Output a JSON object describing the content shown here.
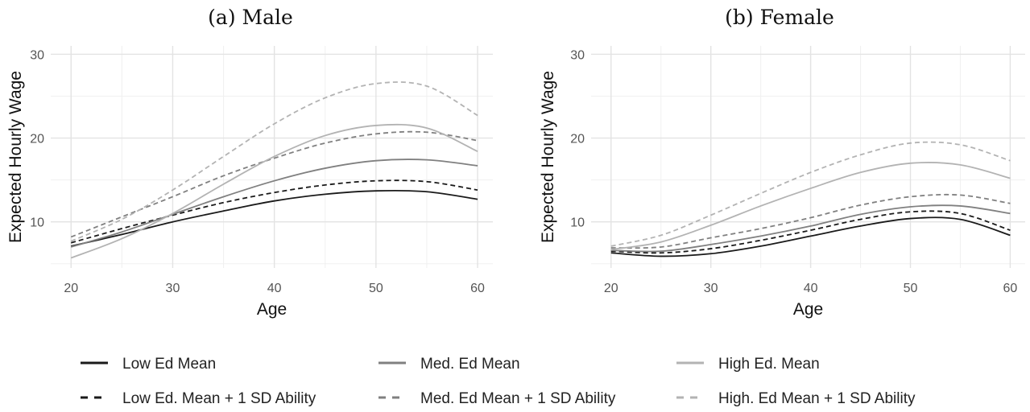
{
  "chart_data": [
    {
      "type": "line",
      "title": "(a) Male",
      "xlabel": "Age",
      "ylabel": "Expected Hourly Wage",
      "xlim": [
        18,
        61.5
      ],
      "ylim": [
        4.5,
        31
      ],
      "xticks": [
        20,
        30,
        40,
        50,
        60
      ],
      "yticks": [
        10,
        20,
        30
      ],
      "grid": true,
      "x": [
        20,
        25,
        30,
        35,
        40,
        45,
        50,
        55,
        60
      ],
      "series": [
        {
          "name": "Low Ed Mean",
          "values": [
            7.1,
            8.5,
            10.0,
            11.3,
            12.5,
            13.3,
            13.7,
            13.6,
            12.7
          ]
        },
        {
          "name": "Low Ed. Mean + 1 SD Ability",
          "values": [
            7.5,
            9.2,
            10.8,
            12.3,
            13.5,
            14.4,
            14.9,
            14.8,
            13.8
          ]
        },
        {
          "name": "Med. Ed Mean",
          "values": [
            7.0,
            8.8,
            10.9,
            13.0,
            14.9,
            16.4,
            17.3,
            17.4,
            16.7
          ]
        },
        {
          "name": "Med. Ed Mean + 1 SD Ability",
          "values": [
            8.2,
            10.6,
            13.0,
            15.5,
            17.6,
            19.4,
            20.5,
            20.7,
            19.7
          ]
        },
        {
          "name": "High Ed. Mean",
          "values": [
            5.7,
            8.0,
            11.0,
            14.5,
            17.8,
            20.3,
            21.5,
            21.2,
            18.4
          ]
        },
        {
          "name": "High. Ed Mean + 1 SD Ability",
          "values": [
            7.7,
            10.3,
            13.8,
            17.8,
            21.7,
            24.8,
            26.5,
            26.2,
            22.7
          ]
        }
      ]
    },
    {
      "type": "line",
      "title": "(b) Female",
      "xlabel": "Age",
      "ylabel": "Expected Hourly Wage",
      "xlim": [
        18,
        61.5
      ],
      "ylim": [
        4.5,
        31
      ],
      "xticks": [
        20,
        30,
        40,
        50,
        60
      ],
      "yticks": [
        10,
        20,
        30
      ],
      "grid": true,
      "x": [
        20,
        25,
        30,
        35,
        40,
        45,
        50,
        55,
        60
      ],
      "series": [
        {
          "name": "Low Ed Mean",
          "values": [
            6.3,
            5.9,
            6.2,
            7.1,
            8.3,
            9.5,
            10.4,
            10.3,
            8.4
          ]
        },
        {
          "name": "Low Ed. Mean + 1 SD Ability",
          "values": [
            6.5,
            6.3,
            6.8,
            7.8,
            9.0,
            10.3,
            11.2,
            11.0,
            9.0
          ]
        },
        {
          "name": "Med. Ed Mean",
          "values": [
            6.6,
            6.5,
            7.3,
            8.3,
            9.5,
            10.9,
            11.8,
            11.9,
            11.0
          ]
        },
        {
          "name": "Med. Ed Mean + 1 SD Ability",
          "values": [
            6.9,
            7.0,
            8.1,
            9.2,
            10.5,
            12.0,
            13.0,
            13.2,
            12.2
          ]
        },
        {
          "name": "High Ed. Mean",
          "values": [
            6.7,
            7.6,
            9.6,
            11.9,
            14.0,
            15.9,
            17.0,
            16.8,
            15.2
          ]
        },
        {
          "name": "High. Ed Mean + 1 SD Ability",
          "values": [
            7.1,
            8.4,
            10.8,
            13.4,
            15.9,
            18.0,
            19.4,
            19.2,
            17.3
          ]
        }
      ]
    }
  ],
  "legend": {
    "placement": "bottom",
    "styles": [
      {
        "color": "#1a1a1a",
        "dash": "solid",
        "width": 1.8
      },
      {
        "color": "#1a1a1a",
        "dash": "dashed",
        "width": 1.8
      },
      {
        "color": "#808080",
        "dash": "solid",
        "width": 1.8
      },
      {
        "color": "#808080",
        "dash": "dashed",
        "width": 1.8
      },
      {
        "color": "#b3b3b3",
        "dash": "solid",
        "width": 1.8
      },
      {
        "color": "#b3b3b3",
        "dash": "dashed",
        "width": 1.8
      }
    ]
  }
}
